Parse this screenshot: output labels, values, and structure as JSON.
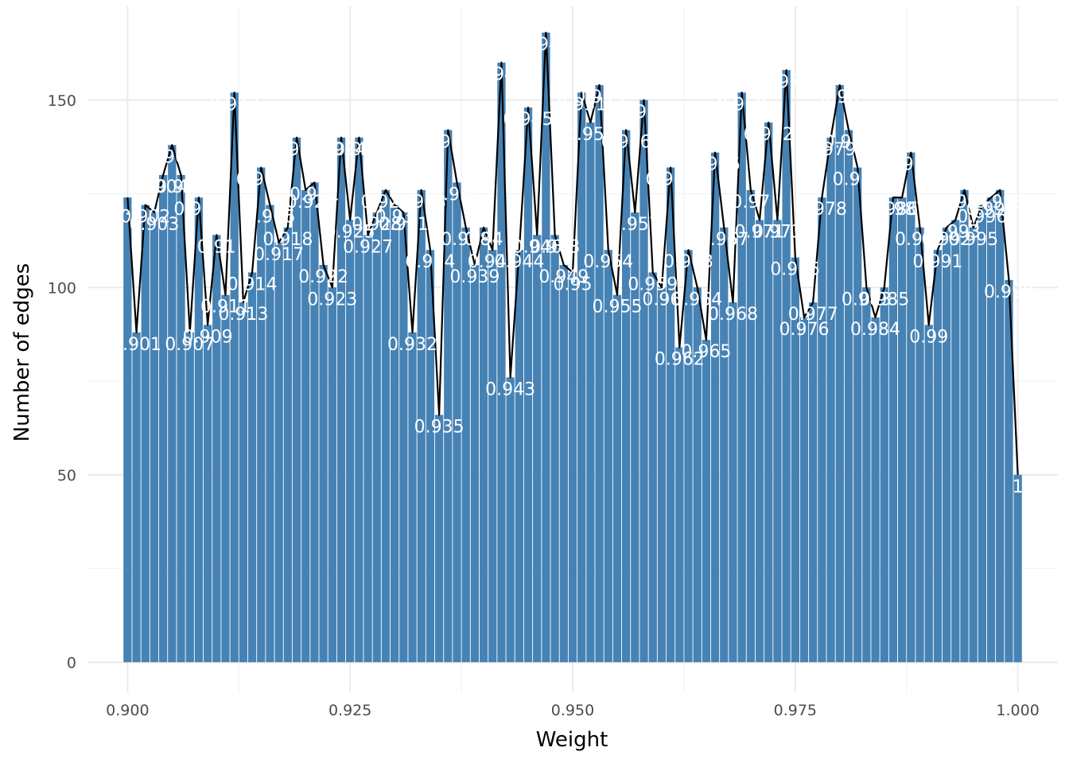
{
  "chart_data": {
    "type": "bar",
    "xlabel": "Weight",
    "ylabel": "Number of edges",
    "xlim": [
      0.8955,
      1.0045
    ],
    "ylim": [
      -8,
      175
    ],
    "x_ticks": [
      0.9,
      0.925,
      0.95,
      0.975,
      1.0
    ],
    "x_tick_labels": [
      "0.900",
      "0.925",
      "0.950",
      "0.975",
      "1.000"
    ],
    "y_ticks": [
      0,
      50,
      100,
      150
    ],
    "y_tick_labels": [
      "0",
      "50",
      "100",
      "150"
    ],
    "grid": true,
    "bar_width": 0.00092,
    "overlay": "line through bar tops",
    "colors": {
      "bar": "#4682b4",
      "line": "#000000",
      "label": "#ffffff",
      "grid": "#ebebeb",
      "tick_text": "#4d4d4d"
    },
    "x": [
      0.9,
      0.901,
      0.902,
      0.903,
      0.904,
      0.905,
      0.906,
      0.907,
      0.908,
      0.909,
      0.91,
      0.911,
      0.912,
      0.913,
      0.914,
      0.915,
      0.916,
      0.917,
      0.918,
      0.919,
      0.92,
      0.921,
      0.922,
      0.923,
      0.924,
      0.925,
      0.926,
      0.927,
      0.928,
      0.929,
      0.93,
      0.931,
      0.932,
      0.933,
      0.934,
      0.935,
      0.936,
      0.937,
      0.938,
      0.939,
      0.94,
      0.941,
      0.942,
      0.943,
      0.944,
      0.945,
      0.946,
      0.947,
      0.948,
      0.949,
      0.95,
      0.951,
      0.952,
      0.953,
      0.954,
      0.955,
      0.956,
      0.957,
      0.958,
      0.959,
      0.96,
      0.961,
      0.962,
      0.963,
      0.964,
      0.965,
      0.966,
      0.967,
      0.968,
      0.969,
      0.97,
      0.971,
      0.972,
      0.973,
      0.974,
      0.975,
      0.976,
      0.977,
      0.978,
      0.979,
      0.98,
      0.981,
      0.982,
      0.983,
      0.984,
      0.985,
      0.986,
      0.987,
      0.988,
      0.989,
      0.99,
      0.991,
      0.992,
      0.993,
      0.994,
      0.995,
      0.996,
      0.997,
      0.998,
      0.999,
      1.0
    ],
    "values": [
      124,
      88,
      122,
      120,
      130,
      138,
      130,
      88,
      124,
      90,
      114,
      98,
      152,
      96,
      104,
      132,
      122,
      112,
      116,
      140,
      126,
      128,
      106,
      100,
      140,
      118,
      140,
      114,
      120,
      126,
      122,
      120,
      88,
      126,
      110,
      66,
      142,
      128,
      116,
      106,
      116,
      110,
      160,
      76,
      110,
      148,
      114,
      168,
      114,
      106,
      104,
      152,
      144,
      154,
      110,
      98,
      142,
      120,
      150,
      104,
      100,
      132,
      84,
      110,
      100,
      86,
      136,
      116,
      96,
      152,
      126,
      118,
      144,
      118,
      158,
      108,
      92,
      96,
      124,
      140,
      154,
      142,
      132,
      100,
      92,
      100,
      124,
      124,
      136,
      116,
      90,
      110,
      116,
      118,
      126,
      116,
      122,
      124,
      126,
      102,
      50
    ],
    "labels": [
      "0.9",
      "0.901",
      "0.902",
      "0.903",
      "0.904",
      "0.905",
      "0.906",
      "0.907",
      "0.908",
      "0.909",
      "0.91",
      "0.911",
      "0.912",
      "0.913",
      "0.914",
      "0.915",
      "0.916",
      "0.917",
      "0.918",
      "0.919",
      "0.92",
      "0.921",
      "0.922",
      "0.923",
      "0.924",
      "0.925",
      "0.926",
      "0.927",
      "0.928",
      "0.929",
      "0.93",
      "0.931",
      "0.932",
      "0.933",
      "0.934",
      "0.935",
      "0.936",
      "0.937",
      "0.938",
      "0.939",
      "0.94",
      "0.941",
      "0.942",
      "0.943",
      "0.944",
      "0.945",
      "0.946",
      "0.947",
      "0.948",
      "0.949",
      "0.95",
      "0.951",
      "0.952",
      "0.953",
      "0.954",
      "0.955",
      "0.956",
      "0.957",
      "0.958",
      "0.959",
      "0.96",
      "0.961",
      "0.962",
      "0.963",
      "0.964",
      "0.965",
      "0.966",
      "0.967",
      "0.968",
      "0.969",
      "0.97",
      "0.971",
      "0.972",
      "0.973",
      "0.974",
      "0.975",
      "0.976",
      "0.977",
      "0.978",
      "0.979",
      "0.98",
      "0.981",
      "0.982",
      "0.983",
      "0.984",
      "0.985",
      "0.986",
      "0.987",
      "0.988",
      "0.989",
      "0.99",
      "0.991",
      "0.992",
      "0.993",
      "0.994",
      "0.995",
      "0.996",
      "0.997",
      "0.998",
      "0.999",
      "1"
    ]
  }
}
